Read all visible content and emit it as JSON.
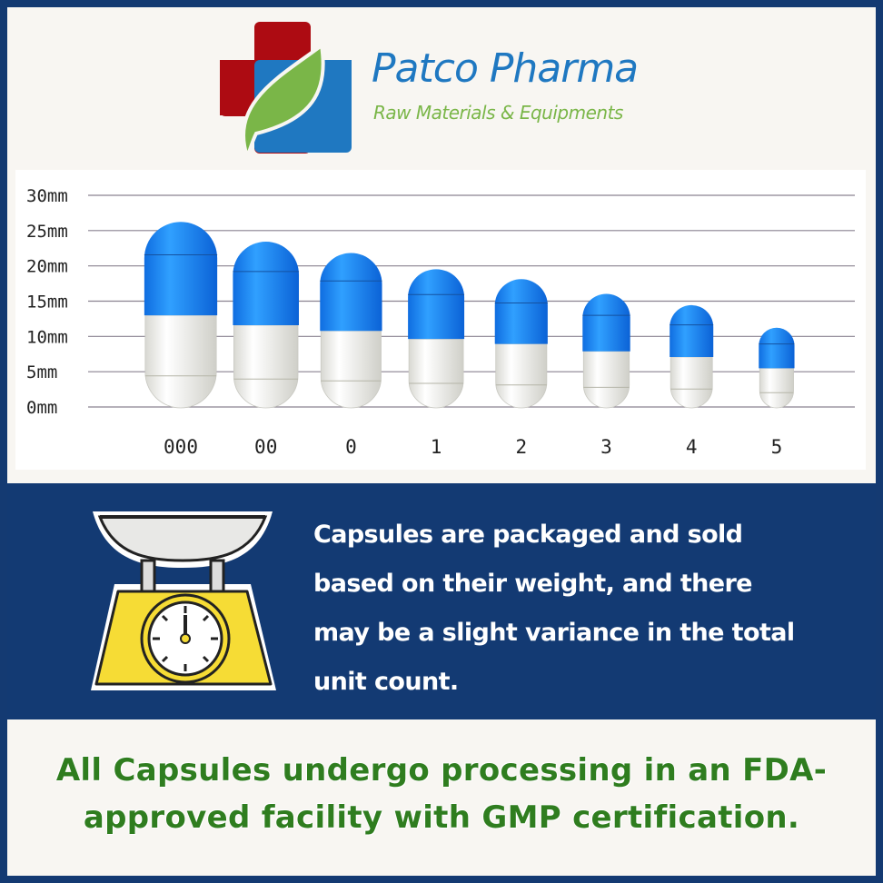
{
  "brand": {
    "name": "Patco Pharma",
    "tagline": "Raw Materials & Equipments",
    "colors": {
      "red": "#ad0b12",
      "blue": "#1f78c1",
      "green": "#7ab648"
    }
  },
  "chart_data": {
    "type": "bar",
    "title": "",
    "xlabel": "",
    "ylabel": "",
    "categories": [
      "000",
      "00",
      "0",
      "1",
      "2",
      "3",
      "4",
      "5"
    ],
    "values": [
      26.1,
      23.3,
      21.7,
      19.4,
      18.0,
      15.9,
      14.3,
      11.1
    ],
    "unit": "mm",
    "ylim": [
      0,
      30
    ],
    "yticks": [
      "0mm",
      "5mm",
      "10mm",
      "15mm",
      "20mm",
      "25mm",
      "30mm"
    ],
    "grid": true,
    "mark": "capsule",
    "colors": {
      "cap": "#1a7fe8",
      "body": "#f2f2ee"
    }
  },
  "message": {
    "lines": [
      "Capsules are packaged and sold",
      "based on their weight, and there",
      "may be a slight variance in the total",
      "unit count."
    ],
    "icon": "kitchen-scale-icon"
  },
  "certification": {
    "lines": [
      "All Capsules undergo processing in an FDA-",
      "approved facility with GMP certification."
    ]
  }
}
